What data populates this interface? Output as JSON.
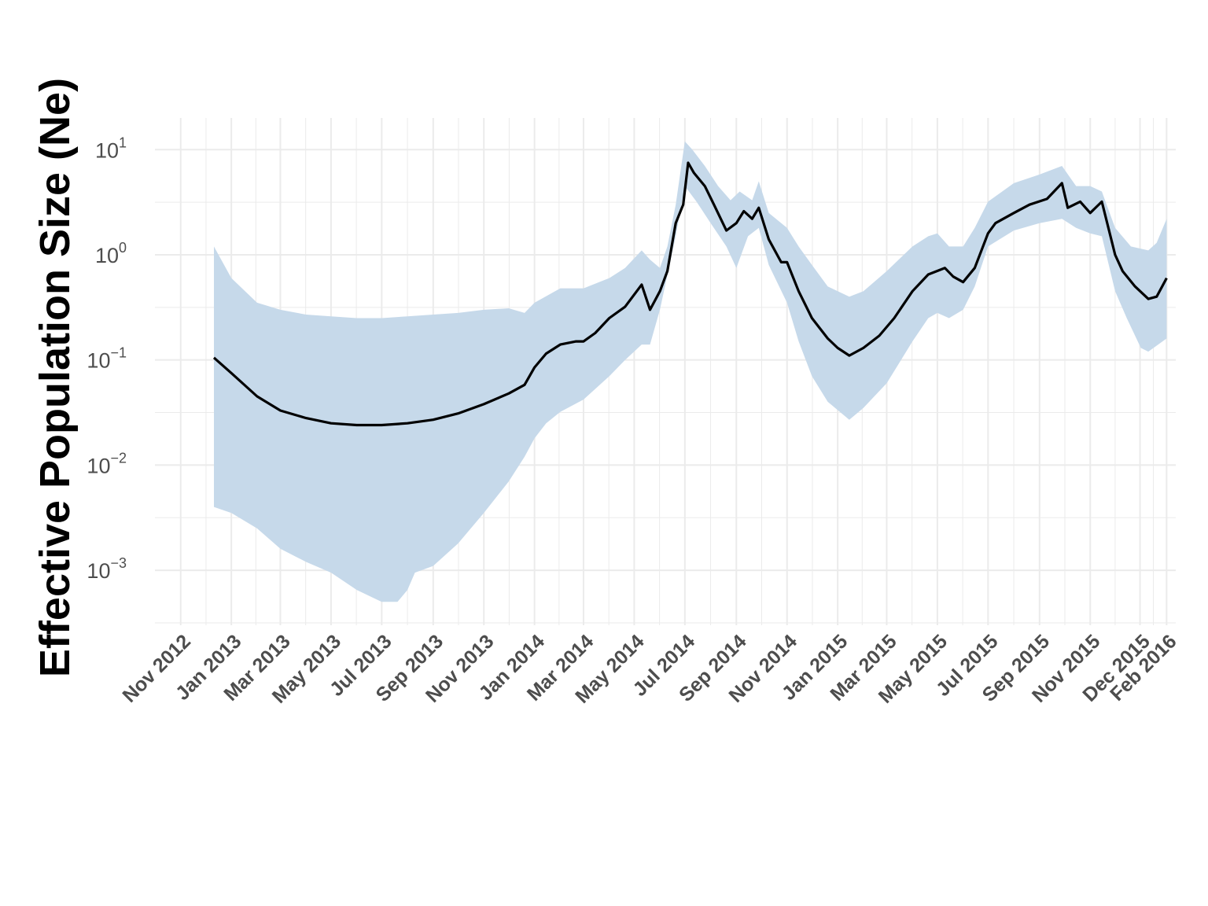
{
  "chart_data": {
    "type": "area",
    "ylabel": "Effective Population Size (Ne)",
    "xlabel": "",
    "title": "",
    "y_scale": "log10",
    "ylim": [
      0.0003,
      20
    ],
    "xlim": [
      "2012-10-01",
      "2016-02-12"
    ],
    "grid": true,
    "legend": "none",
    "y_ticks": [
      {
        "base": "10",
        "exp": "1",
        "value": 10
      },
      {
        "base": "10",
        "exp": "0",
        "value": 1
      },
      {
        "base": "10",
        "exp": "−1",
        "value": 0.1
      },
      {
        "base": "10",
        "exp": "−2",
        "value": 0.01
      },
      {
        "base": "10",
        "exp": "−3",
        "value": 0.001
      }
    ],
    "x_ticks": [
      {
        "label": "Nov 2012",
        "date": "2012-11-01"
      },
      {
        "label": "Jan 2013",
        "date": "2013-01-01"
      },
      {
        "label": "Mar 2013",
        "date": "2013-03-01"
      },
      {
        "label": "May 2013",
        "date": "2013-05-01"
      },
      {
        "label": "Jul 2013",
        "date": "2013-07-01"
      },
      {
        "label": "Sep 2013",
        "date": "2013-09-01"
      },
      {
        "label": "Nov 2013",
        "date": "2013-11-01"
      },
      {
        "label": "Jan 2014",
        "date": "2014-01-01"
      },
      {
        "label": "Mar 2014",
        "date": "2014-03-01"
      },
      {
        "label": "May 2014",
        "date": "2014-05-01"
      },
      {
        "label": "Jul 2014",
        "date": "2014-07-01"
      },
      {
        "label": "Sep 2014",
        "date": "2014-09-01"
      },
      {
        "label": "Nov 2014",
        "date": "2014-11-01"
      },
      {
        "label": "Jan 2015",
        "date": "2015-01-01"
      },
      {
        "label": "Mar 2015",
        "date": "2015-03-01"
      },
      {
        "label": "May 2015",
        "date": "2015-05-01"
      },
      {
        "label": "Jul 2015",
        "date": "2015-07-01"
      },
      {
        "label": "Sep 2015",
        "date": "2015-09-01"
      },
      {
        "label": "Nov 2015",
        "date": "2015-11-01"
      },
      {
        "label": "Dec 2015",
        "date": "2015-12-31"
      },
      {
        "label": "Feb 2016",
        "date": "2016-02-01"
      }
    ],
    "series": [
      {
        "type": "line",
        "color": "#000000",
        "points": [
          [
            "2012-12-11",
            0.105
          ],
          [
            "2013-01-01",
            0.075
          ],
          [
            "2013-02-01",
            0.045
          ],
          [
            "2013-03-01",
            0.033
          ],
          [
            "2013-04-01",
            0.028
          ],
          [
            "2013-05-01",
            0.025
          ],
          [
            "2013-06-01",
            0.024
          ],
          [
            "2013-07-01",
            0.024
          ],
          [
            "2013-08-01",
            0.025
          ],
          [
            "2013-09-01",
            0.027
          ],
          [
            "2013-10-01",
            0.031
          ],
          [
            "2013-11-01",
            0.038
          ],
          [
            "2013-12-01",
            0.048
          ],
          [
            "2013-12-20",
            0.058
          ],
          [
            "2014-01-01",
            0.085
          ],
          [
            "2014-01-15",
            0.115
          ],
          [
            "2014-02-01",
            0.14
          ],
          [
            "2014-02-20",
            0.15
          ],
          [
            "2014-03-01",
            0.15
          ],
          [
            "2014-03-15",
            0.18
          ],
          [
            "2014-04-01",
            0.25
          ],
          [
            "2014-04-20",
            0.32
          ],
          [
            "2014-05-10",
            0.52
          ],
          [
            "2014-05-20",
            0.3
          ],
          [
            "2014-06-01",
            0.45
          ],
          [
            "2014-06-10",
            0.7
          ],
          [
            "2014-06-20",
            2.0
          ],
          [
            "2014-06-29",
            3.0
          ],
          [
            "2014-07-05",
            7.5
          ],
          [
            "2014-07-12",
            6.0
          ],
          [
            "2014-07-25",
            4.5
          ],
          [
            "2014-08-05",
            3.0
          ],
          [
            "2014-08-20",
            1.7
          ],
          [
            "2014-09-01",
            2.0
          ],
          [
            "2014-09-10",
            2.6
          ],
          [
            "2014-09-20",
            2.2
          ],
          [
            "2014-09-28",
            2.8
          ],
          [
            "2014-10-10",
            1.4
          ],
          [
            "2014-10-25",
            0.85
          ],
          [
            "2014-11-01",
            0.85
          ],
          [
            "2014-11-15",
            0.45
          ],
          [
            "2014-12-01",
            0.25
          ],
          [
            "2014-12-20",
            0.16
          ],
          [
            "2015-01-01",
            0.13
          ],
          [
            "2015-01-15",
            0.11
          ],
          [
            "2015-02-01",
            0.13
          ],
          [
            "2015-02-20",
            0.17
          ],
          [
            "2015-03-10",
            0.25
          ],
          [
            "2015-04-01",
            0.45
          ],
          [
            "2015-04-20",
            0.65
          ],
          [
            "2015-05-10",
            0.75
          ],
          [
            "2015-05-20",
            0.62
          ],
          [
            "2015-06-01",
            0.55
          ],
          [
            "2015-06-15",
            0.75
          ],
          [
            "2015-07-01",
            1.6
          ],
          [
            "2015-07-10",
            2.0
          ],
          [
            "2015-08-01",
            2.5
          ],
          [
            "2015-08-20",
            3.0
          ],
          [
            "2015-09-10",
            3.4
          ],
          [
            "2015-09-28",
            4.8
          ],
          [
            "2015-10-05",
            2.8
          ],
          [
            "2015-10-20",
            3.2
          ],
          [
            "2015-11-01",
            2.5
          ],
          [
            "2015-11-15",
            3.2
          ],
          [
            "2015-12-01",
            1.0
          ],
          [
            "2015-12-10",
            0.7
          ],
          [
            "2015-12-25",
            0.5
          ],
          [
            "2016-01-10",
            0.38
          ],
          [
            "2016-01-20",
            0.4
          ],
          [
            "2016-02-01",
            0.6
          ]
        ]
      },
      {
        "type": "band",
        "color": "#c6d9ea",
        "lower": [
          [
            "2012-12-11",
            0.004
          ],
          [
            "2013-01-01",
            0.0035
          ],
          [
            "2013-02-01",
            0.0025
          ],
          [
            "2013-03-01",
            0.0016
          ],
          [
            "2013-04-01",
            0.0012
          ],
          [
            "2013-05-01",
            0.00095
          ],
          [
            "2013-06-01",
            0.00065
          ],
          [
            "2013-07-01",
            0.0005
          ],
          [
            "2013-07-20",
            0.0005
          ],
          [
            "2013-08-01",
            0.00065
          ],
          [
            "2013-08-10",
            0.00095
          ],
          [
            "2013-09-01",
            0.0011
          ],
          [
            "2013-10-01",
            0.0018
          ],
          [
            "2013-11-01",
            0.0035
          ],
          [
            "2013-12-01",
            0.007
          ],
          [
            "2013-12-20",
            0.012
          ],
          [
            "2014-01-01",
            0.018
          ],
          [
            "2014-01-15",
            0.025
          ],
          [
            "2014-02-01",
            0.032
          ],
          [
            "2014-03-01",
            0.042
          ],
          [
            "2014-04-01",
            0.07
          ],
          [
            "2014-04-20",
            0.1
          ],
          [
            "2014-05-10",
            0.14
          ],
          [
            "2014-05-20",
            0.14
          ],
          [
            "2014-06-01",
            0.3
          ],
          [
            "2014-06-20",
            1.5
          ],
          [
            "2014-07-01",
            4.5
          ],
          [
            "2014-07-15",
            3.2
          ],
          [
            "2014-08-01",
            2.0
          ],
          [
            "2014-08-20",
            1.2
          ],
          [
            "2014-09-01",
            0.75
          ],
          [
            "2014-09-15",
            1.5
          ],
          [
            "2014-09-28",
            1.8
          ],
          [
            "2014-10-10",
            0.8
          ],
          [
            "2014-11-01",
            0.35
          ],
          [
            "2014-11-15",
            0.15
          ],
          [
            "2014-12-01",
            0.07
          ],
          [
            "2014-12-20",
            0.04
          ],
          [
            "2015-01-15",
            0.027
          ],
          [
            "2015-02-01",
            0.035
          ],
          [
            "2015-03-01",
            0.06
          ],
          [
            "2015-04-01",
            0.15
          ],
          [
            "2015-04-20",
            0.25
          ],
          [
            "2015-05-01",
            0.28
          ],
          [
            "2015-05-15",
            0.25
          ],
          [
            "2015-06-01",
            0.3
          ],
          [
            "2015-06-15",
            0.5
          ],
          [
            "2015-07-01",
            1.2
          ],
          [
            "2015-08-01",
            1.7
          ],
          [
            "2015-09-01",
            2.0
          ],
          [
            "2015-09-28",
            2.2
          ],
          [
            "2015-10-15",
            1.8
          ],
          [
            "2015-11-01",
            1.6
          ],
          [
            "2015-11-15",
            1.5
          ],
          [
            "2015-12-01",
            0.45
          ],
          [
            "2015-12-15",
            0.25
          ],
          [
            "2016-01-01",
            0.13
          ],
          [
            "2016-01-10",
            0.12
          ],
          [
            "2016-02-01",
            0.16
          ]
        ],
        "upper": [
          [
            "2012-12-11",
            1.2
          ],
          [
            "2013-01-01",
            0.6
          ],
          [
            "2013-02-01",
            0.35
          ],
          [
            "2013-03-01",
            0.3
          ],
          [
            "2013-04-01",
            0.27
          ],
          [
            "2013-05-01",
            0.26
          ],
          [
            "2013-06-01",
            0.25
          ],
          [
            "2013-07-01",
            0.25
          ],
          [
            "2013-08-01",
            0.26
          ],
          [
            "2013-09-01",
            0.27
          ],
          [
            "2013-10-01",
            0.28
          ],
          [
            "2013-11-01",
            0.3
          ],
          [
            "2013-12-01",
            0.31
          ],
          [
            "2013-12-20",
            0.28
          ],
          [
            "2014-01-01",
            0.35
          ],
          [
            "2014-02-01",
            0.48
          ],
          [
            "2014-03-01",
            0.48
          ],
          [
            "2014-04-01",
            0.6
          ],
          [
            "2014-04-20",
            0.75
          ],
          [
            "2014-05-10",
            1.1
          ],
          [
            "2014-05-20",
            0.9
          ],
          [
            "2014-06-01",
            0.75
          ],
          [
            "2014-06-10",
            1.2
          ],
          [
            "2014-06-20",
            3.0
          ],
          [
            "2014-07-01",
            12.0
          ],
          [
            "2014-07-10",
            10.0
          ],
          [
            "2014-07-25",
            7.0
          ],
          [
            "2014-08-10",
            4.5
          ],
          [
            "2014-08-25",
            3.3
          ],
          [
            "2014-09-05",
            4.0
          ],
          [
            "2014-09-20",
            3.3
          ],
          [
            "2014-09-28",
            5.0
          ],
          [
            "2014-10-10",
            2.5
          ],
          [
            "2014-11-01",
            1.8
          ],
          [
            "2014-11-15",
            1.2
          ],
          [
            "2014-12-01",
            0.8
          ],
          [
            "2014-12-20",
            0.5
          ],
          [
            "2015-01-15",
            0.4
          ],
          [
            "2015-02-01",
            0.45
          ],
          [
            "2015-03-01",
            0.7
          ],
          [
            "2015-04-01",
            1.2
          ],
          [
            "2015-04-20",
            1.5
          ],
          [
            "2015-05-01",
            1.6
          ],
          [
            "2015-05-15",
            1.2
          ],
          [
            "2015-06-01",
            1.2
          ],
          [
            "2015-06-15",
            1.8
          ],
          [
            "2015-07-01",
            3.2
          ],
          [
            "2015-08-01",
            4.8
          ],
          [
            "2015-09-01",
            5.8
          ],
          [
            "2015-09-28",
            7.0
          ],
          [
            "2015-10-15",
            4.5
          ],
          [
            "2015-11-01",
            4.5
          ],
          [
            "2015-11-15",
            4.0
          ],
          [
            "2015-12-01",
            1.8
          ],
          [
            "2015-12-20",
            1.2
          ],
          [
            "2016-01-10",
            1.1
          ],
          [
            "2016-01-20",
            1.3
          ],
          [
            "2016-02-01",
            2.2
          ]
        ]
      }
    ]
  }
}
